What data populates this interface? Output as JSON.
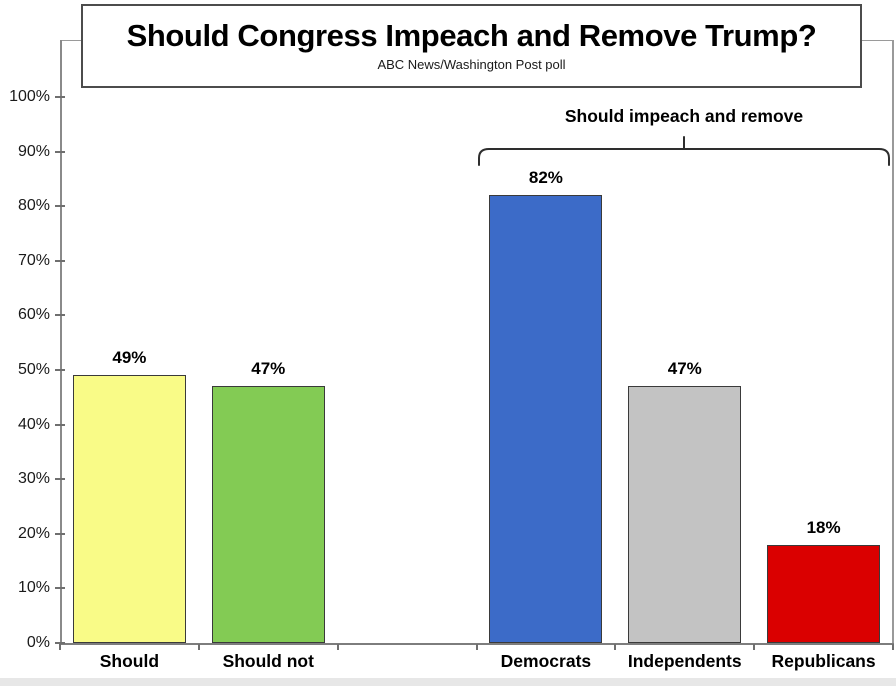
{
  "title_box": {
    "title": "Should Congress Impeach and Remove Trump?",
    "subtitle": "ABC News/Washington Post poll"
  },
  "chart_data": {
    "type": "bar",
    "title": "Should Congress Impeach and Remove Trump?",
    "subtitle": "ABC News/Washington Post poll",
    "categories": [
      "Should",
      "Should not",
      "Democrats",
      "Independents",
      "Republicans"
    ],
    "values": [
      49,
      47,
      82,
      47,
      18
    ],
    "value_labels": [
      "49%",
      "47%",
      "82%",
      "47%",
      "18%"
    ],
    "bar_colors": [
      "#f9fb87",
      "#83cb54",
      "#3c6bc8",
      "#c3c3c3",
      "#da0000"
    ],
    "groups": [
      {
        "label": "",
        "categories": [
          "Should",
          "Should not"
        ]
      },
      {
        "label": "Should impeach and remove",
        "categories": [
          "Democrats",
          "Independents",
          "Republicans"
        ]
      }
    ],
    "annotation": {
      "text": "Should impeach and remove",
      "spans": [
        "Democrats",
        "Independents",
        "Republicans"
      ]
    },
    "ylim": [
      0,
      100
    ],
    "ytick_step": 10,
    "ytick_labels": [
      "0%",
      "10%",
      "20%",
      "30%",
      "40%",
      "50%",
      "60%",
      "70%",
      "80%",
      "90%",
      "100%"
    ],
    "grid": false,
    "legend": "none",
    "layout_hints": {
      "slot_of_category": [
        0,
        1,
        3,
        4,
        5
      ],
      "total_slots": 6
    }
  }
}
